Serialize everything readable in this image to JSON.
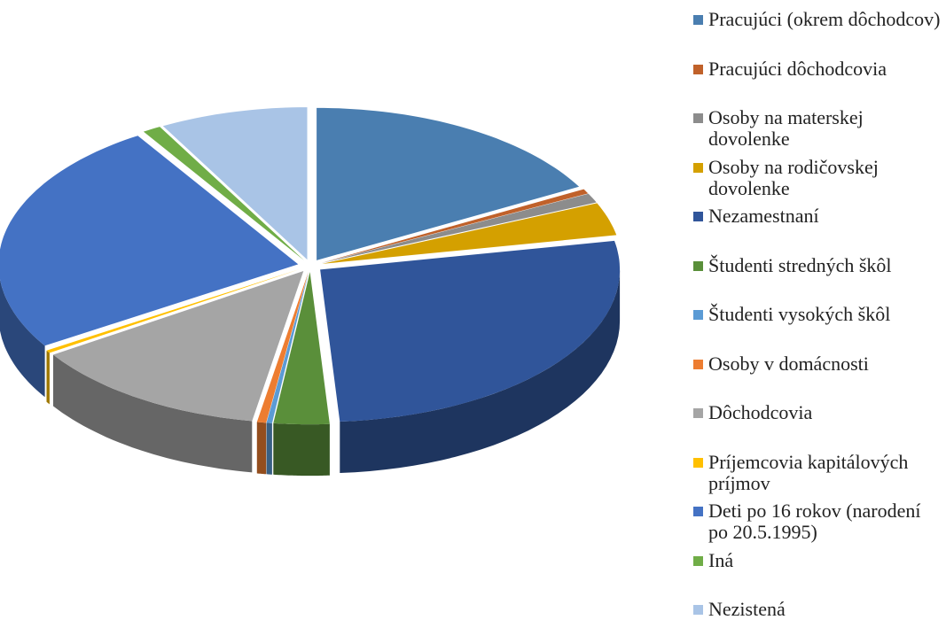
{
  "chart_data": {
    "type": "pie",
    "categories": [
      "Pracujúci (okrem dôchodcov)",
      "Pracujúci dôchodcovia",
      "Osoby na materskej dovolenke",
      "Osoby na rodičovskej dovolenke",
      "Nezamestnaní",
      "Študenti stredných škôl",
      "Študenti vysokých škôl",
      "Osoby v domácnosti",
      "Dôchodcovia",
      "Príjemcovia kapitálových príjmov",
      "Deti po 16 rokov (narodení po 20.5.1995)",
      "Iná",
      "Nezistená"
    ],
    "values": [
      17,
      0.5,
      1,
      3.5,
      27,
      3,
      0.3,
      0.5,
      13,
      0.3,
      25,
      1,
      8
    ],
    "colors": [
      "#4a7eb0",
      "#c0612a",
      "#8c8c8c",
      "#d4a000",
      "#30559a",
      "#5a8f3a",
      "#5b9bd5",
      "#ed7d31",
      "#a5a5a5",
      "#ffc000",
      "#4472c4",
      "#70ad47",
      "#a9c4e6"
    ],
    "legend": "right"
  }
}
